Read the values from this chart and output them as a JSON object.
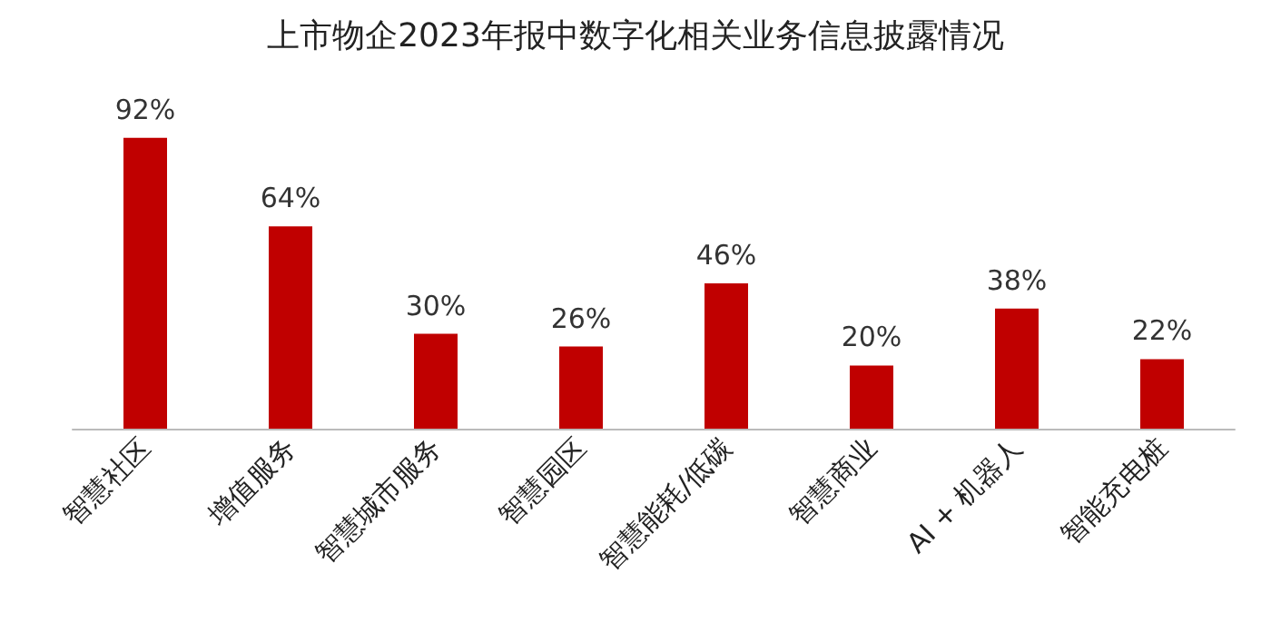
{
  "chart_data": {
    "type": "bar",
    "title": "上市物企2023年报中数字化相关业务信息披露情况",
    "categories": [
      "智慧社区",
      "增值服务",
      "智慧城市服务",
      "智慧园区",
      "智慧能耗/低碳",
      "智慧商业",
      "AI + 机器人",
      "智能充电桩"
    ],
    "values": [
      92,
      64,
      30,
      26,
      46,
      20,
      38,
      22
    ],
    "value_labels": [
      "92%",
      "64%",
      "30%",
      "26%",
      "46%",
      "20%",
      "38%",
      "22%"
    ],
    "color": "#c00000",
    "tick_labels": "x"
  }
}
